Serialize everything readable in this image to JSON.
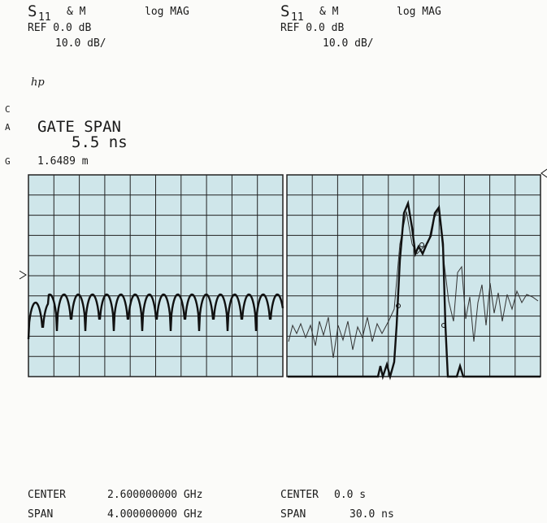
{
  "left_header": {
    "param": "S",
    "param_sub": "11",
    "trace": "& M",
    "format": "log MAG",
    "ref": "REF 0.0 dB",
    "scale": "10.0 dB/"
  },
  "right_header": {
    "param": "S",
    "param_sub": "11",
    "trace": "& M",
    "format": "log MAG",
    "ref": "REF 0.0 dB",
    "scale": "10.0 dB/"
  },
  "logo": "hp",
  "side_flags": [
    "C",
    "A",
    "G"
  ],
  "gate": {
    "title": "GATE SPAN",
    "value": "5.5 ns",
    "marker": "1.6489 m"
  },
  "footer": {
    "left": [
      [
        "CENTER",
        "2.600000000 GHz"
      ],
      [
        "SPAN",
        "4.000000000 GHz"
      ]
    ],
    "right": [
      [
        "CENTER",
        "0.0 s"
      ],
      [
        "SPAN",
        "30.0 ns"
      ]
    ]
  }
}
